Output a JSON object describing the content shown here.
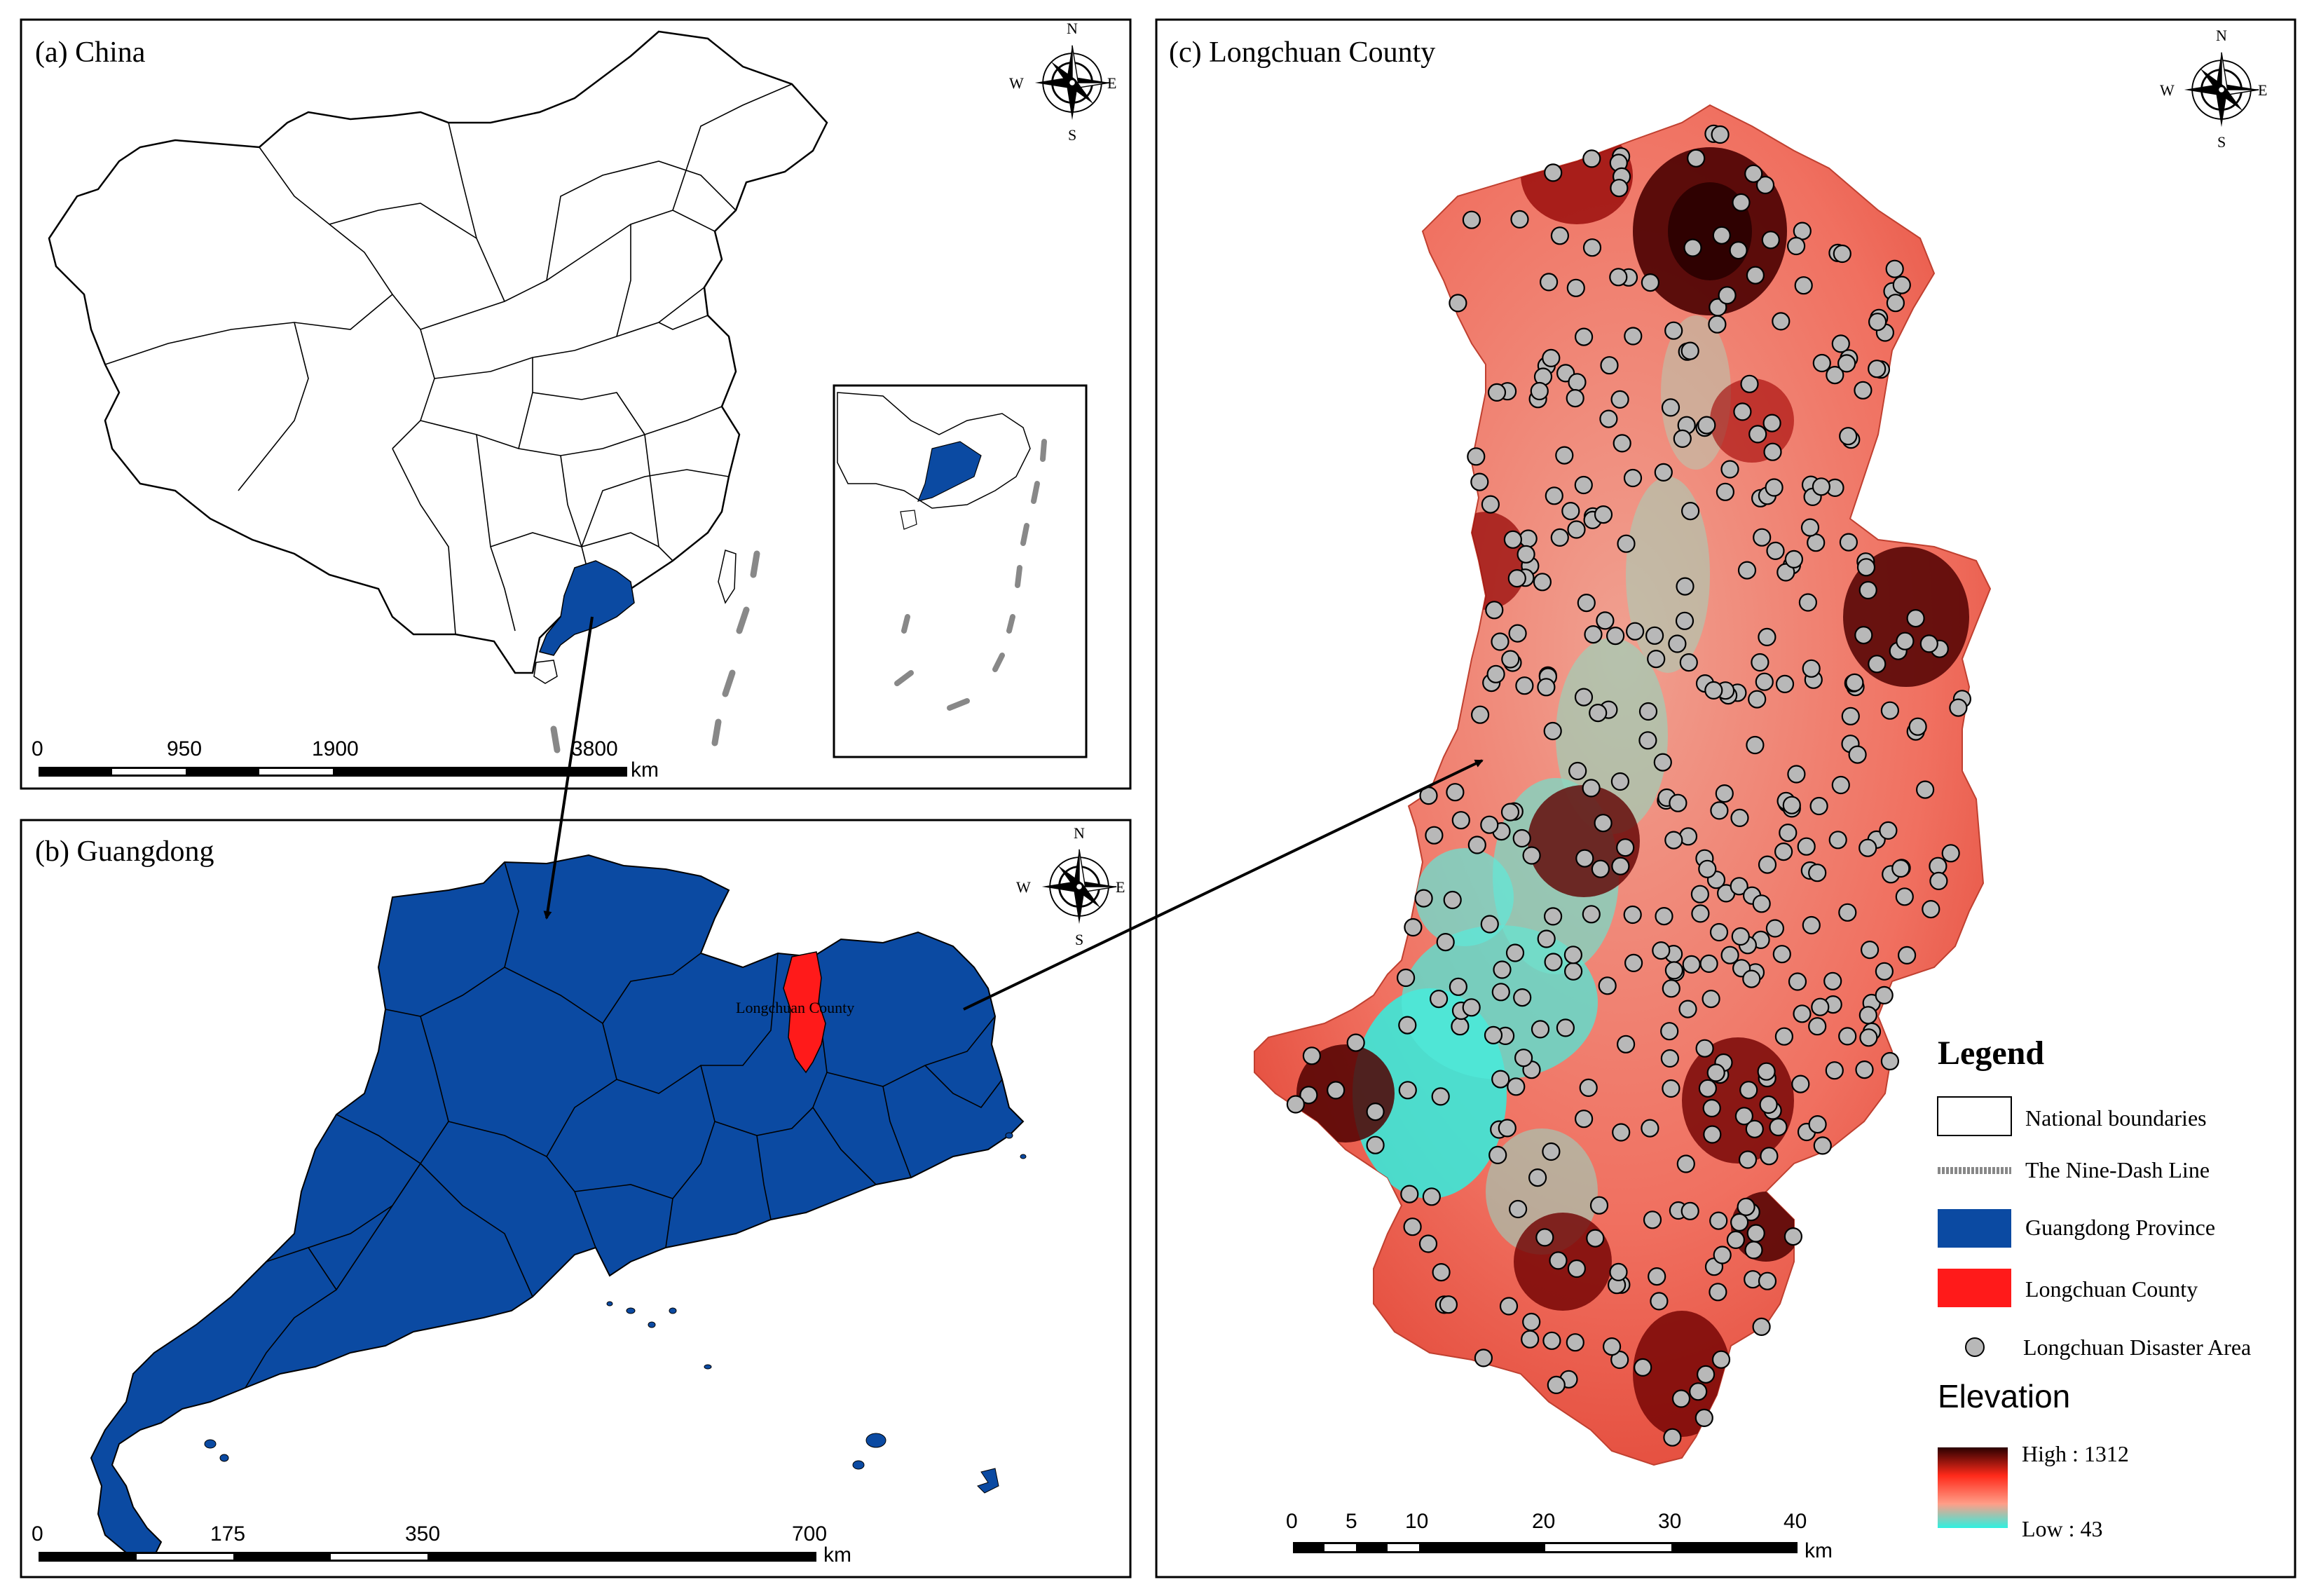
{
  "panels": {
    "a": {
      "title": "(a)  China"
    },
    "b": {
      "title": "(b)  Guangdong",
      "county_label": "Longchuan County"
    },
    "c": {
      "title": "(c)  Longchuan County"
    }
  },
  "compass": {
    "n": "N",
    "s": "S",
    "e": "E",
    "w": "W"
  },
  "scalebars": {
    "a": {
      "ticks": [
        "0",
        "950",
        "1900",
        "3800"
      ],
      "unit": "km"
    },
    "b": {
      "ticks": [
        "0",
        "175",
        "350",
        "700"
      ],
      "unit": "km"
    },
    "c": {
      "ticks": [
        "0",
        "5",
        "10",
        "20",
        "30",
        "40"
      ],
      "unit": "km"
    }
  },
  "legend": {
    "title": "Legend",
    "items": [
      {
        "label": "National boundaries",
        "symbol": "outline-box"
      },
      {
        "label": "The Nine-Dash Line",
        "symbol": "dash-line"
      },
      {
        "label": "Guangdong Province",
        "symbol": "blue-box"
      },
      {
        "label": "Longchuan County",
        "symbol": "red-box"
      },
      {
        "label": "Longchuan Disaster Area",
        "symbol": "grey-circle"
      }
    ],
    "elevation": {
      "title": "Elevation",
      "high": "High : 1312",
      "low": "Low : 43"
    }
  },
  "colors": {
    "guangdong": "#0b4aa2",
    "longchuan": "#ff1a1a",
    "elev_high": "#3a0000",
    "elev_mid": "#ff3b2b",
    "elev_low": "#2ef0e0",
    "disaster": "#b8b8b8"
  }
}
